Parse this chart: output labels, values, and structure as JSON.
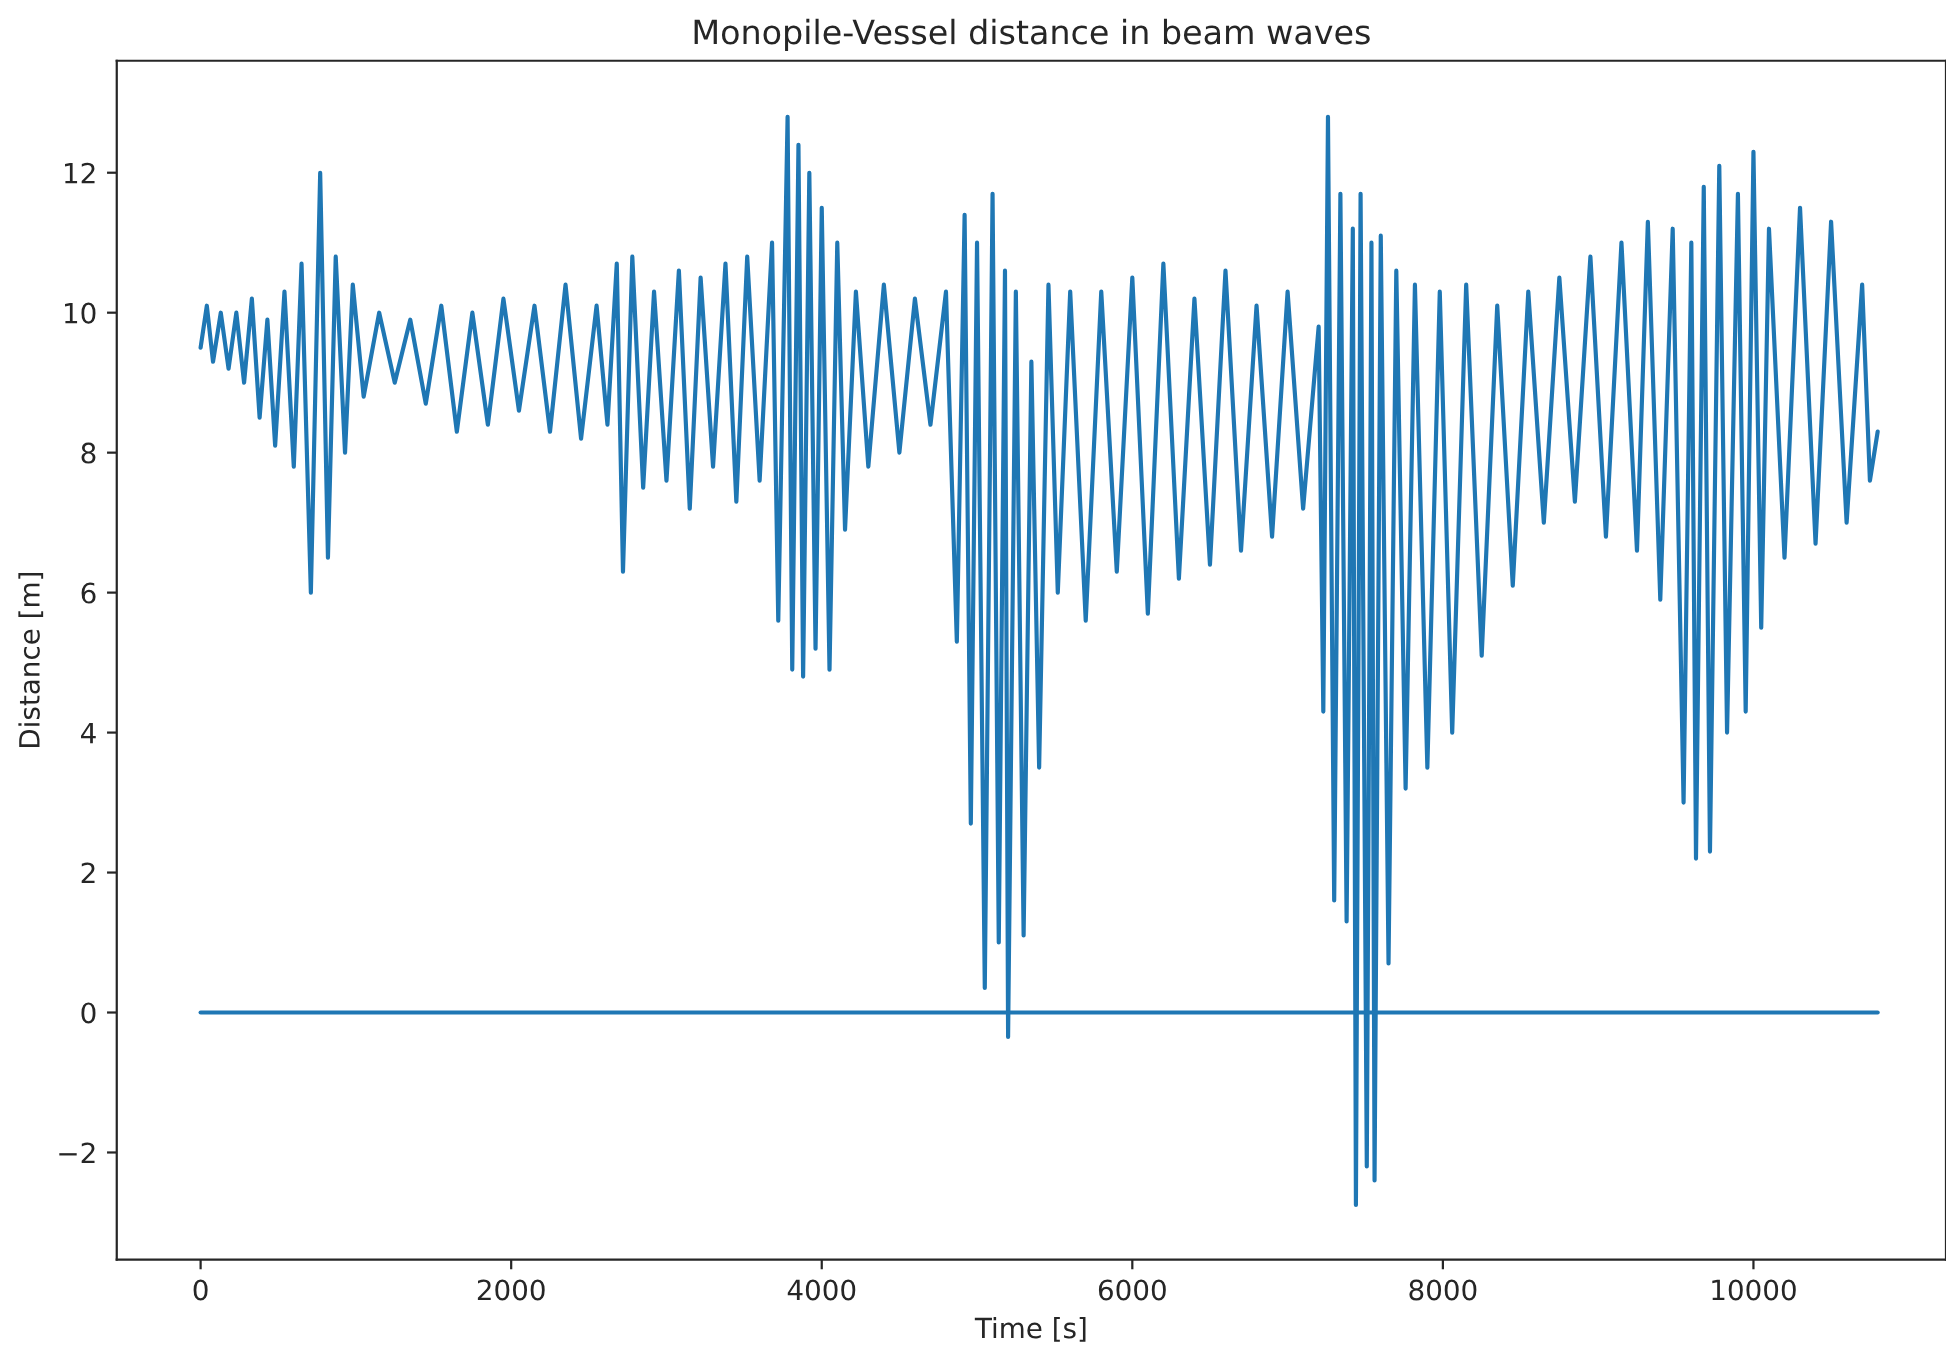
{
  "chart_data": {
    "type": "line",
    "title": "Monopile-Vessel distance in beam waves",
    "xlabel": "Time [s]",
    "ylabel": "Distance [m]",
    "xlim": [
      -540,
      11240
    ],
    "ylim": [
      -3.53,
      13.6
    ],
    "xticks": [
      0,
      2000,
      4000,
      6000,
      8000,
      10000
    ],
    "yticks": [
      {
        "value": -2,
        "label": "−2"
      },
      0,
      2,
      4,
      6,
      8,
      10,
      12
    ],
    "series": [
      {
        "color": "#1f77b4",
        "x": [
          0,
          40,
          80,
          130,
          180,
          230,
          280,
          330,
          380,
          430,
          480,
          540,
          600,
          650,
          710,
          770,
          820,
          870,
          930,
          980,
          1050,
          1150,
          1250,
          1350,
          1450,
          1550,
          1650,
          1750,
          1850,
          1950,
          2050,
          2150,
          2250,
          2350,
          2450,
          2550,
          2620,
          2680,
          2720,
          2780,
          2850,
          2920,
          3000,
          3080,
          3150,
          3220,
          3300,
          3380,
          3450,
          3520,
          3600,
          3680,
          3720,
          3780,
          3810,
          3850,
          3880,
          3920,
          3960,
          4000,
          4050,
          4100,
          4150,
          4220,
          4300,
          4400,
          4500,
          4600,
          4700,
          4800,
          4870,
          4920,
          4960,
          5000,
          5050,
          5100,
          5140,
          5180,
          5200,
          5250,
          5300,
          5350,
          5400,
          5460,
          5520,
          5600,
          5700,
          5800,
          5900,
          6000,
          6100,
          6200,
          6300,
          6400,
          6500,
          6600,
          6700,
          6800,
          6900,
          7000,
          7100,
          7200,
          7230,
          7260,
          7300,
          7340,
          7380,
          7420,
          7440,
          7470,
          7510,
          7540,
          7560,
          7600,
          7650,
          7700,
          7760,
          7820,
          7900,
          7980,
          8060,
          8150,
          8250,
          8350,
          8450,
          8550,
          8650,
          8750,
          8850,
          8950,
          9050,
          9150,
          9250,
          9320,
          9400,
          9480,
          9550,
          9600,
          9630,
          9680,
          9720,
          9780,
          9830,
          9900,
          9950,
          10000,
          10050,
          10100,
          10200,
          10300,
          10400,
          10500,
          10600,
          10700,
          10750,
          10800
        ],
        "values": [
          9.5,
          10.1,
          9.3,
          10.0,
          9.2,
          10.0,
          9.0,
          10.2,
          8.5,
          9.9,
          8.1,
          10.3,
          7.8,
          10.7,
          6.0,
          12.0,
          6.5,
          10.8,
          8.0,
          10.4,
          8.8,
          10.0,
          9.0,
          9.9,
          8.7,
          10.1,
          8.3,
          10.0,
          8.4,
          10.2,
          8.6,
          10.1,
          8.3,
          10.4,
          8.2,
          10.1,
          8.4,
          10.7,
          6.3,
          10.8,
          7.5,
          10.3,
          7.6,
          10.6,
          7.2,
          10.5,
          7.8,
          10.7,
          7.3,
          10.8,
          7.6,
          11.0,
          5.6,
          12.8,
          4.9,
          12.4,
          4.8,
          12.0,
          5.2,
          11.5,
          4.9,
          11.0,
          6.9,
          10.3,
          7.8,
          10.4,
          8.0,
          10.2,
          8.4,
          10.3,
          5.3,
          11.4,
          2.7,
          11.0,
          0.35,
          11.7,
          1.0,
          10.6,
          -0.35,
          10.3,
          1.1,
          9.3,
          3.5,
          10.4,
          6.0,
          10.3,
          5.6,
          10.3,
          6.3,
          10.5,
          5.7,
          10.7,
          6.2,
          10.2,
          6.4,
          10.6,
          6.6,
          10.1,
          6.8,
          10.3,
          7.2,
          9.8,
          4.3,
          12.8,
          1.6,
          11.7,
          1.3,
          11.2,
          -2.75,
          11.7,
          -2.2,
          11.0,
          -2.4,
          11.1,
          0.7,
          10.6,
          3.2,
          10.4,
          3.5,
          10.3,
          4.0,
          10.4,
          5.1,
          10.1,
          6.1,
          10.3,
          7.0,
          10.5,
          7.3,
          10.8,
          6.8,
          11.0,
          6.6,
          11.3,
          5.9,
          11.2,
          3.0,
          11.0,
          2.2,
          11.8,
          2.3,
          12.1,
          4.0,
          11.7,
          4.3,
          12.3,
          5.5,
          11.2,
          6.5,
          11.5,
          6.7,
          11.3,
          7.0,
          10.4,
          7.6,
          8.3
        ]
      },
      {
        "color": "#1f77b4",
        "x": [
          0,
          10800
        ],
        "values": [
          0,
          0
        ]
      }
    ]
  }
}
